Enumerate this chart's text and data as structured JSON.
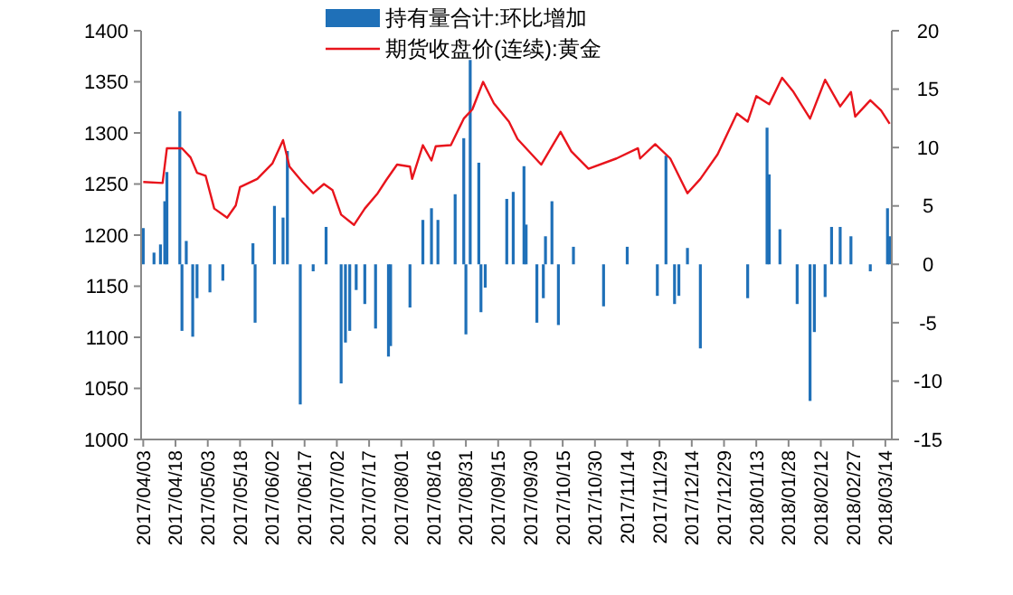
{
  "chart_data": {
    "type": "bar",
    "legend": "top",
    "xlim": [
      "2017-04-02",
      "2018-03-17"
    ],
    "xticks": [
      {
        "value": "2017-04-03",
        "label": "2017/04/03"
      },
      {
        "value": "2017-04-18",
        "label": "2017/04/18"
      },
      {
        "value": "2017-05-03",
        "label": "2017/05/03"
      },
      {
        "value": "2017-05-18",
        "label": "2017/05/18"
      },
      {
        "value": "2017-06-02",
        "label": "2017/06/02"
      },
      {
        "value": "2017-06-17",
        "label": "2017/06/17"
      },
      {
        "value": "2017-07-02",
        "label": "2017/07/02"
      },
      {
        "value": "2017-07-17",
        "label": "2017/07/17"
      },
      {
        "value": "2017-08-01",
        "label": "2017/08/01"
      },
      {
        "value": "2017-08-16",
        "label": "2017/08/16"
      },
      {
        "value": "2017-08-31",
        "label": "2017/08/31"
      },
      {
        "value": "2017-09-15",
        "label": "2017/09/15"
      },
      {
        "value": "2017-09-30",
        "label": "2017/09/30"
      },
      {
        "value": "2017-10-15",
        "label": "2017/10/15"
      },
      {
        "value": "2017-10-30",
        "label": "2017/10/30"
      },
      {
        "value": "2017-11-14",
        "label": "2017/11/14"
      },
      {
        "value": "2017-11-29",
        "label": "2017/11/29"
      },
      {
        "value": "2017-12-14",
        "label": "2017/12/14"
      },
      {
        "value": "2017-12-29",
        "label": "2017/12/29"
      },
      {
        "value": "2018-01-13",
        "label": "2018/01/13"
      },
      {
        "value": "2018-01-28",
        "label": "2018/01/28"
      },
      {
        "value": "2018-02-12",
        "label": "2018/02/12"
      },
      {
        "value": "2018-02-27",
        "label": "2018/02/27"
      },
      {
        "value": "2018-03-14",
        "label": "2018/03/14"
      }
    ],
    "ylim": [
      1000,
      1400
    ],
    "yticks": [
      1000,
      1050,
      1100,
      1150,
      1200,
      1250,
      1300,
      1350,
      1400
    ],
    "y2lim": [
      -15,
      20
    ],
    "y2ticks": [
      -15,
      -10,
      -5,
      0,
      5,
      10,
      15,
      20
    ],
    "series": [
      {
        "name": "持有量合计:环比增加",
        "axis": "y2",
        "color": "#1f70b8",
        "x": [
          "2017-04-03",
          "2017-04-08",
          "2017-04-11",
          "2017-04-13",
          "2017-04-14",
          "2017-04-20",
          "2017-04-21",
          "2017-04-23",
          "2017-04-26",
          "2017-04-28",
          "2017-05-04",
          "2017-05-10",
          "2017-05-24",
          "2017-05-25",
          "2017-06-03",
          "2017-06-07",
          "2017-06-09",
          "2017-06-15",
          "2017-06-21",
          "2017-06-27",
          "2017-07-04",
          "2017-07-06",
          "2017-07-08",
          "2017-07-11",
          "2017-07-15",
          "2017-07-20",
          "2017-07-26",
          "2017-07-27",
          "2017-08-05",
          "2017-08-11",
          "2017-08-15",
          "2017-08-18",
          "2017-08-26",
          "2017-08-30",
          "2017-08-31",
          "2017-09-02",
          "2017-09-06",
          "2017-09-07",
          "2017-09-09",
          "2017-09-19",
          "2017-09-22",
          "2017-09-27",
          "2017-09-28",
          "2017-10-03",
          "2017-10-06",
          "2017-10-07",
          "2017-10-10",
          "2017-10-13",
          "2017-10-20",
          "2017-11-03",
          "2017-11-14",
          "2017-11-28",
          "2017-12-02",
          "2017-12-06",
          "2017-12-08",
          "2017-12-12",
          "2017-12-18",
          "2018-01-09",
          "2018-01-18",
          "2018-01-19",
          "2018-01-24",
          "2018-02-01",
          "2018-02-07",
          "2018-02-09",
          "2018-02-14",
          "2018-02-17",
          "2018-02-21",
          "2018-02-26",
          "2018-03-07",
          "2018-03-15",
          "2018-03-16"
        ],
        "values": [
          3.1,
          1,
          1.7,
          5.4,
          7.9,
          13.1,
          -5.7,
          2,
          -6.2,
          -2.9,
          -2.4,
          -1.4,
          1.8,
          -5,
          5,
          4,
          9.7,
          -12,
          -0.6,
          3.2,
          -10.2,
          -6.7,
          -5.7,
          -2.2,
          -3.4,
          -5.5,
          -7.9,
          -7,
          -3.7,
          3.8,
          4.8,
          3.8,
          6,
          10.8,
          -6,
          17.5,
          8.7,
          -4.1,
          -2,
          5.6,
          6.2,
          8.4,
          3.4,
          -5,
          -2.9,
          2.4,
          5.4,
          -5.2,
          1.5,
          -3.6,
          1.5,
          -2.7,
          9.3,
          -3.4,
          -2.7,
          1.4,
          -7.2,
          -2.9,
          11.7,
          7.7,
          3,
          -3.4,
          -11.7,
          -5.8,
          -2.8,
          3.2,
          3.2,
          2.4,
          -0.6,
          4.8,
          2.4
        ]
      },
      {
        "name": "期货收盘价(连续):黄金",
        "type": "line",
        "axis": "y",
        "color": "#e8141c",
        "x": [
          "2017-04-03",
          "2017-04-12",
          "2017-04-14",
          "2017-04-21",
          "2017-04-25",
          "2017-04-28",
          "2017-05-02",
          "2017-05-06",
          "2017-05-12",
          "2017-05-16",
          "2017-05-18",
          "2017-05-26",
          "2017-06-02",
          "2017-06-07",
          "2017-06-10",
          "2017-06-16",
          "2017-06-21",
          "2017-06-26",
          "2017-06-30",
          "2017-07-04",
          "2017-07-10",
          "2017-07-15",
          "2017-07-21",
          "2017-07-25",
          "2017-07-30",
          "2017-08-05",
          "2017-08-06",
          "2017-08-11",
          "2017-08-15",
          "2017-08-17",
          "2017-08-24",
          "2017-08-30",
          "2017-09-03",
          "2017-09-08",
          "2017-09-13",
          "2017-09-20",
          "2017-09-24",
          "2017-10-05",
          "2017-10-14",
          "2017-10-19",
          "2017-10-27",
          "2017-11-09",
          "2017-11-19",
          "2017-11-20",
          "2017-11-27",
          "2017-12-04",
          "2017-12-12",
          "2017-12-18",
          "2017-12-26",
          "2018-01-04",
          "2018-01-09",
          "2018-01-13",
          "2018-01-19",
          "2018-01-25",
          "2018-01-30",
          "2018-02-07",
          "2018-02-14",
          "2018-02-21",
          "2018-02-26",
          "2018-02-28",
          "2018-03-07",
          "2018-03-12",
          "2018-03-16"
        ],
        "values": [
          1252,
          1251,
          1285,
          1285,
          1276,
          1261,
          1258,
          1226,
          1217,
          1229,
          1247,
          1255,
          1270,
          1293,
          1267,
          1252,
          1241,
          1250,
          1244,
          1220,
          1210,
          1226,
          1241,
          1254,
          1269,
          1267,
          1255,
          1288,
          1273,
          1287,
          1288,
          1314,
          1323,
          1350,
          1329,
          1311,
          1294,
          1269,
          1301,
          1282,
          1265,
          1275,
          1285,
          1275,
          1289,
          1275,
          1241,
          1255,
          1279,
          1319,
          1311,
          1336,
          1328,
          1354,
          1341,
          1314,
          1352,
          1326,
          1340,
          1316,
          1332,
          1322,
          1309
        ]
      }
    ]
  }
}
